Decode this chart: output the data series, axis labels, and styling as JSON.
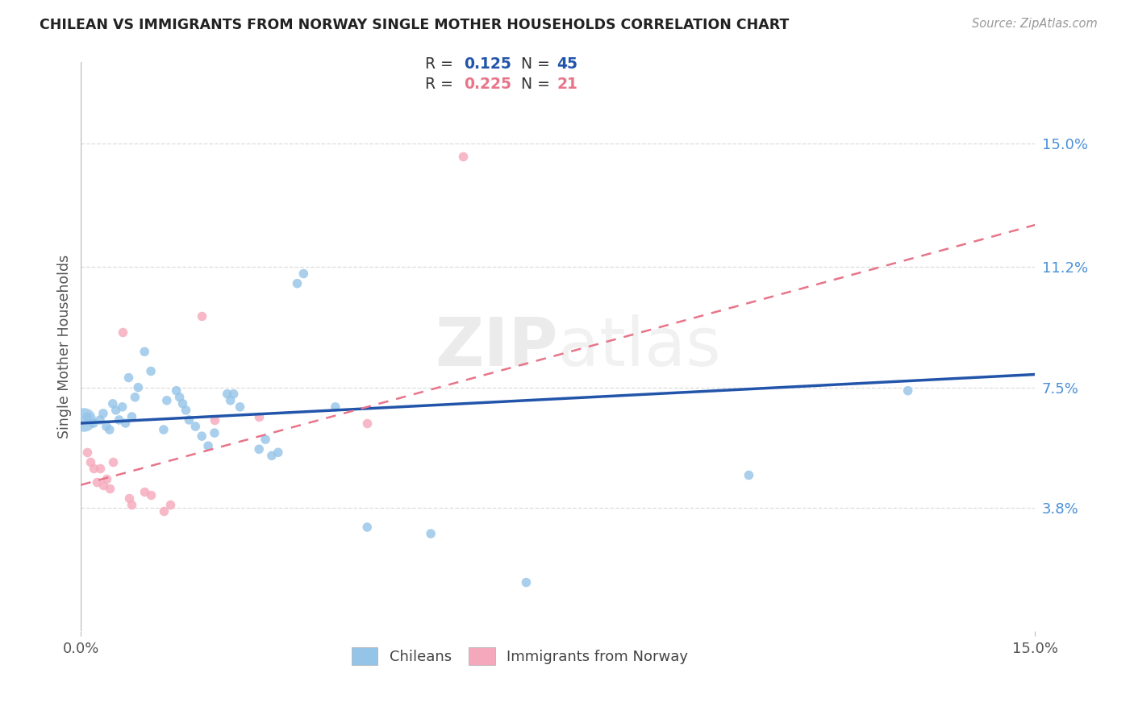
{
  "title": "CHILEAN VS IMMIGRANTS FROM NORWAY SINGLE MOTHER HOUSEHOLDS CORRELATION CHART",
  "source": "Source: ZipAtlas.com",
  "ylabel": "Single Mother Households",
  "chilean_color": "#94C4E8",
  "norway_color": "#F5A8BB",
  "line_chilean_color": "#2255AA",
  "line_norway_color": "#E8748A",
  "background_color": "#ffffff",
  "watermark": "ZIPatlas",
  "xlim": [
    0.0,
    15.0
  ],
  "ylim": [
    0.0,
    17.5
  ],
  "ytick_values": [
    3.8,
    7.5,
    11.2,
    15.0
  ],
  "ytick_labels": [
    "3.8%",
    "7.5%",
    "11.2%",
    "15.0%"
  ],
  "chilean_line_y0": 6.4,
  "chilean_line_y1": 7.9,
  "norway_line_y0": 4.5,
  "norway_line_y1": 12.5,
  "chilean_R": "0.125",
  "chilean_N": "45",
  "norway_R": "0.225",
  "norway_N": "21",
  "chilean_points": [
    [
      0.05,
      6.5
    ],
    [
      0.1,
      6.6
    ],
    [
      0.2,
      6.4
    ],
    [
      0.3,
      6.5
    ],
    [
      0.35,
      6.7
    ],
    [
      0.4,
      6.3
    ],
    [
      0.45,
      6.2
    ],
    [
      0.5,
      7.0
    ],
    [
      0.55,
      6.8
    ],
    [
      0.6,
      6.5
    ],
    [
      0.65,
      6.9
    ],
    [
      0.7,
      6.4
    ],
    [
      0.75,
      7.8
    ],
    [
      0.8,
      6.6
    ],
    [
      0.85,
      7.2
    ],
    [
      0.9,
      7.5
    ],
    [
      1.0,
      8.6
    ],
    [
      1.1,
      8.0
    ],
    [
      1.3,
      6.2
    ],
    [
      1.35,
      7.1
    ],
    [
      1.5,
      7.4
    ],
    [
      1.55,
      7.2
    ],
    [
      1.6,
      7.0
    ],
    [
      1.65,
      6.8
    ],
    [
      1.7,
      6.5
    ],
    [
      1.8,
      6.3
    ],
    [
      1.9,
      6.0
    ],
    [
      2.0,
      5.7
    ],
    [
      2.1,
      6.1
    ],
    [
      2.3,
      7.3
    ],
    [
      2.35,
      7.1
    ],
    [
      2.4,
      7.3
    ],
    [
      2.5,
      6.9
    ],
    [
      2.8,
      5.6
    ],
    [
      2.9,
      5.9
    ],
    [
      3.0,
      5.4
    ],
    [
      3.1,
      5.5
    ],
    [
      3.4,
      10.7
    ],
    [
      3.5,
      11.0
    ],
    [
      4.0,
      6.9
    ],
    [
      4.5,
      3.2
    ],
    [
      5.5,
      3.0
    ],
    [
      7.0,
      1.5
    ],
    [
      10.5,
      4.8
    ],
    [
      13.0,
      7.4
    ]
  ],
  "norway_points": [
    [
      0.1,
      5.5
    ],
    [
      0.15,
      5.2
    ],
    [
      0.2,
      5.0
    ],
    [
      0.25,
      4.6
    ],
    [
      0.3,
      5.0
    ],
    [
      0.35,
      4.5
    ],
    [
      0.4,
      4.7
    ],
    [
      0.45,
      4.4
    ],
    [
      0.5,
      5.2
    ],
    [
      0.65,
      9.2
    ],
    [
      0.75,
      4.1
    ],
    [
      0.8,
      3.9
    ],
    [
      1.0,
      4.3
    ],
    [
      1.1,
      4.2
    ],
    [
      1.3,
      3.7
    ],
    [
      1.4,
      3.9
    ],
    [
      1.9,
      9.7
    ],
    [
      2.1,
      6.5
    ],
    [
      2.8,
      6.6
    ],
    [
      4.5,
      6.4
    ],
    [
      6.0,
      14.6
    ]
  ]
}
